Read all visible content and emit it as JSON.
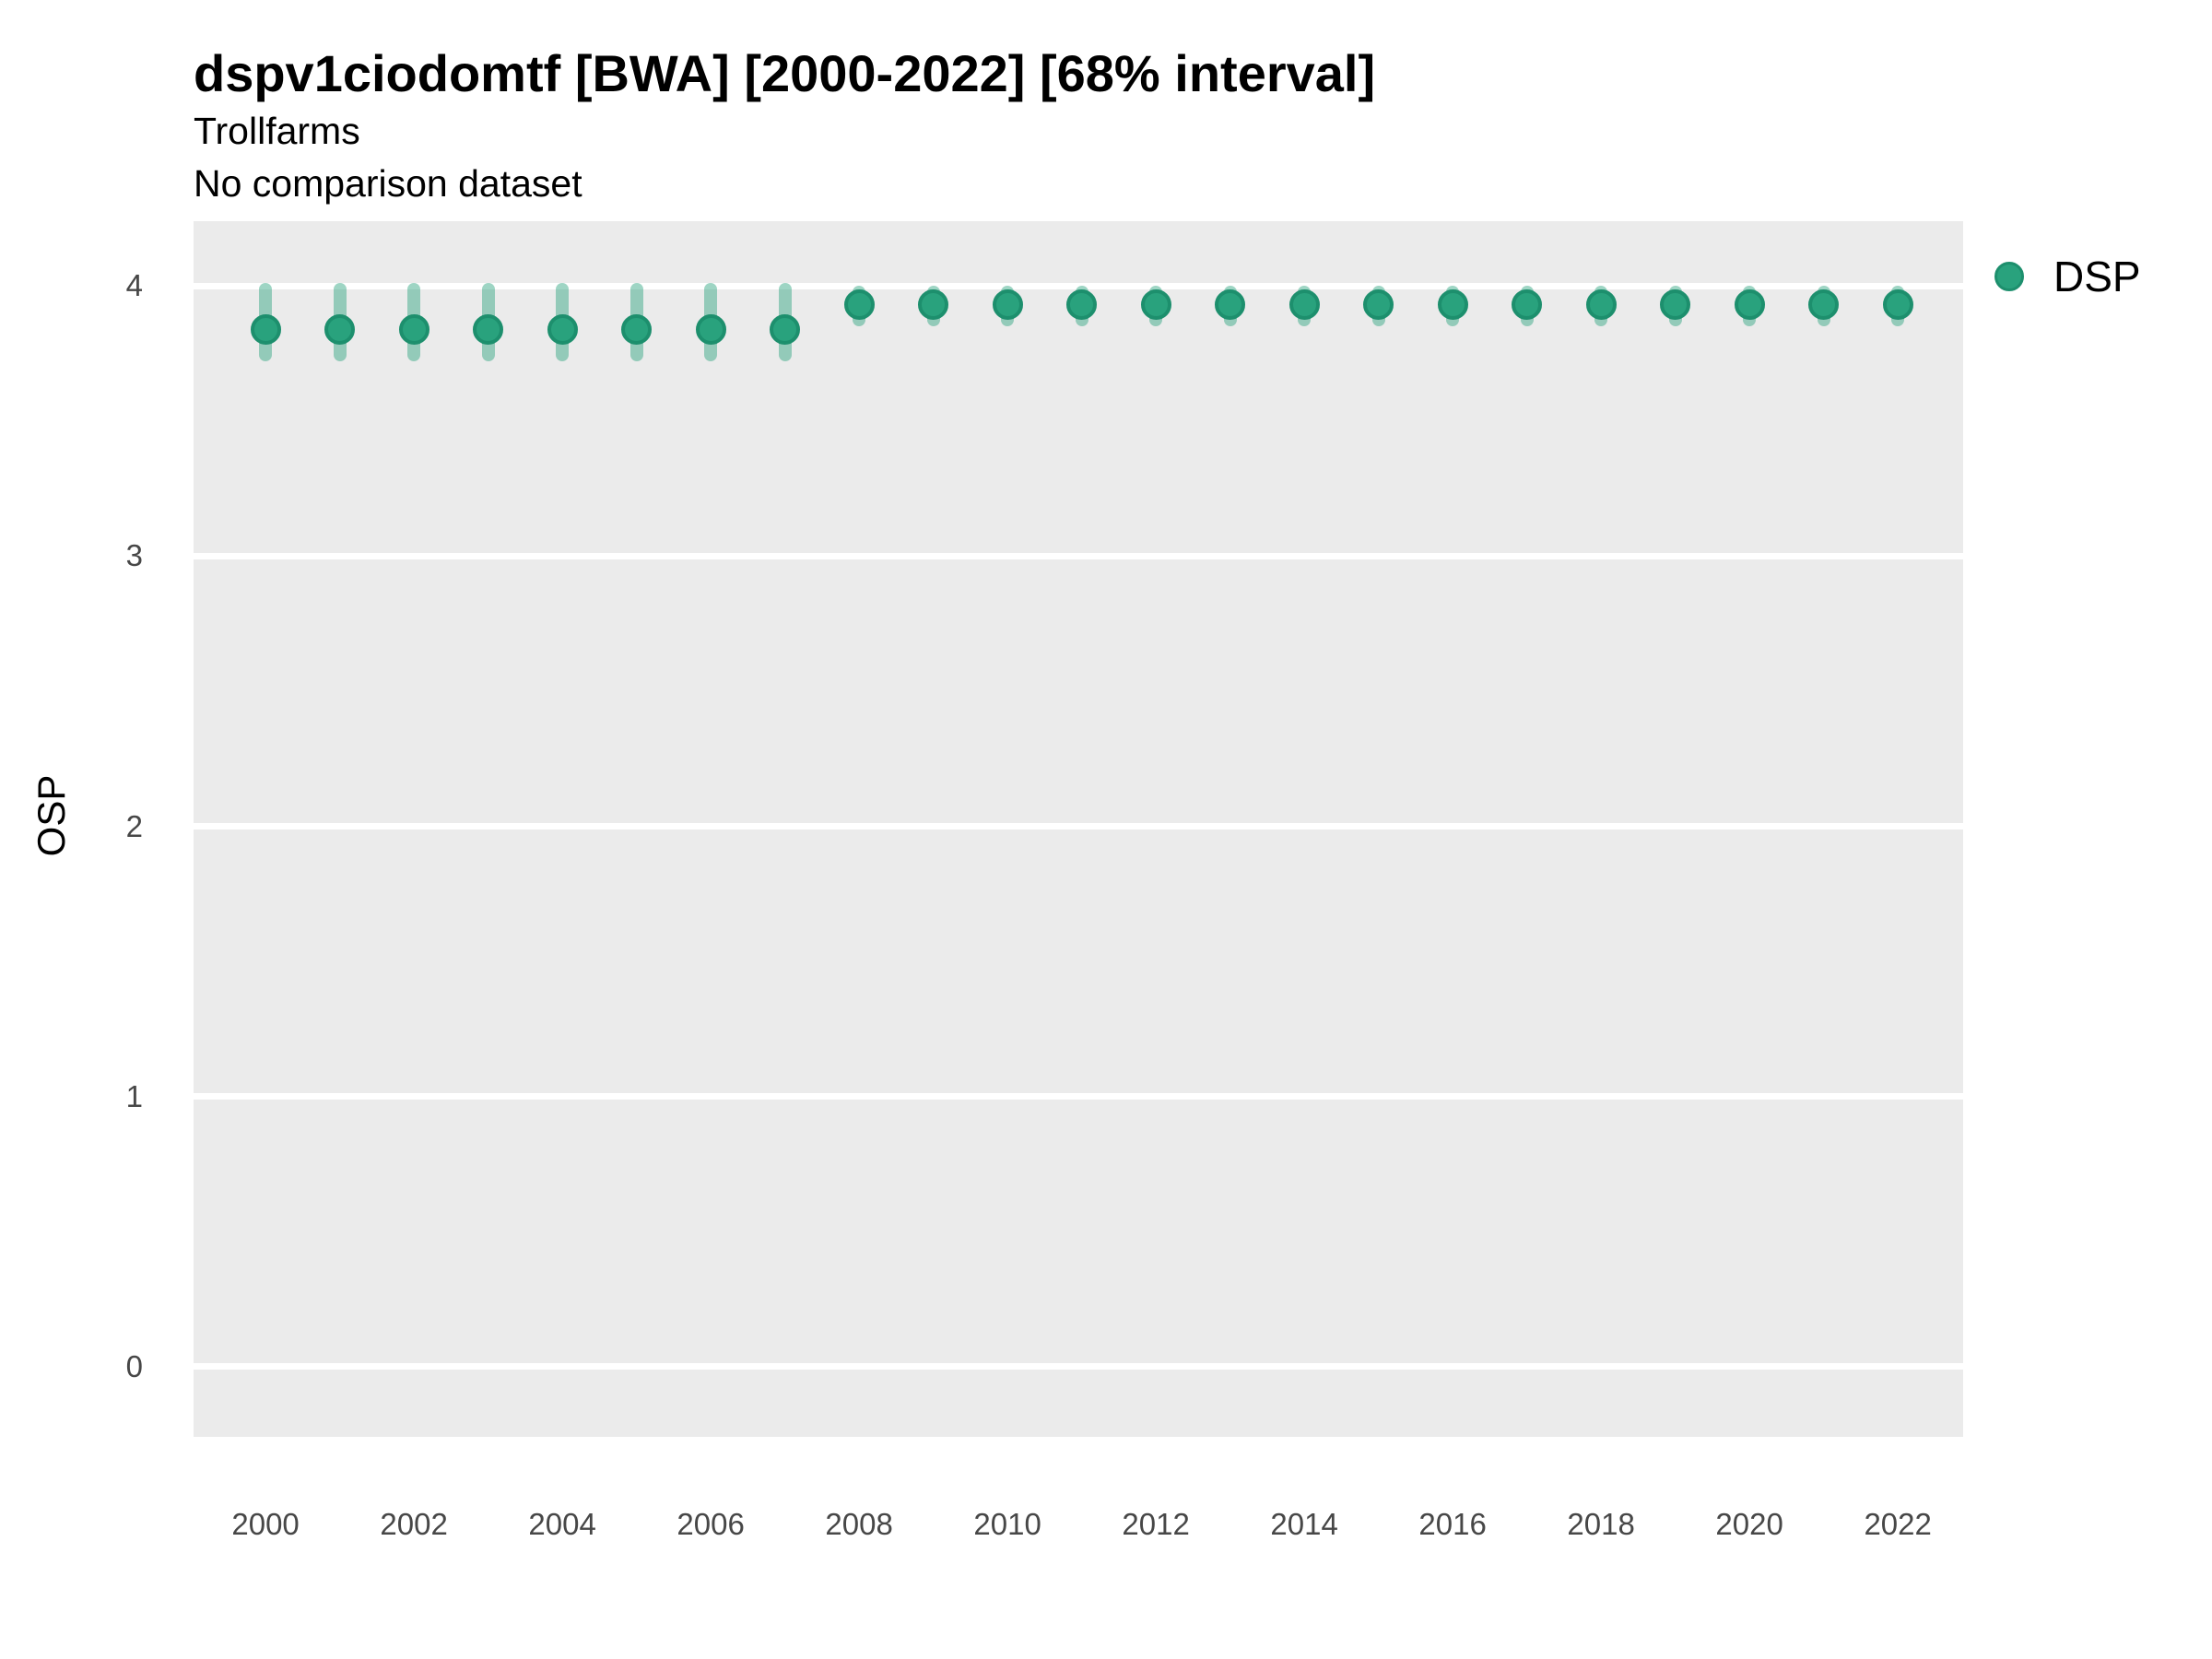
{
  "header": {
    "title": "dspv1ciodomtf [BWA] [2000-2022] [68% interval]",
    "subtitle": "Trollfarms",
    "note": "No comparison dataset"
  },
  "y_axis": {
    "title": "OSP"
  },
  "legend": {
    "entries": [
      {
        "label": "DSP",
        "marker": "circle-icon"
      }
    ]
  },
  "chart_data": {
    "type": "scatter",
    "title": "dspv1ciodomtf [BWA] [2000-2022] [68% interval]",
    "subtitle": "Trollfarms",
    "note": "No comparison dataset",
    "xlabel": "",
    "ylabel": "OSP",
    "interval": "68%",
    "legend_position": "right",
    "grid": "horizontal-major-only",
    "panel_bg": "#ebebeb",
    "gridline_color": "#ffffff",
    "x": [
      2000,
      2001,
      2002,
      2003,
      2004,
      2005,
      2006,
      2007,
      2008,
      2009,
      2010,
      2011,
      2012,
      2013,
      2014,
      2015,
      2016,
      2017,
      2018,
      2019,
      2020,
      2021,
      2022
    ],
    "series": [
      {
        "name": "DSP",
        "marker_fill": "#29a27d",
        "marker_stroke": "#1d8f6d",
        "interval_color": "#29a27d",
        "interval_alpha": 0.45,
        "values": [
          3.84,
          3.84,
          3.84,
          3.84,
          3.84,
          3.84,
          3.84,
          3.84,
          3.93,
          3.93,
          3.93,
          3.93,
          3.93,
          3.93,
          3.93,
          3.93,
          3.93,
          3.93,
          3.93,
          3.93,
          3.93,
          3.93,
          3.93
        ],
        "lower_68": [
          3.72,
          3.72,
          3.72,
          3.72,
          3.72,
          3.72,
          3.72,
          3.72,
          3.85,
          3.85,
          3.85,
          3.85,
          3.85,
          3.85,
          3.85,
          3.85,
          3.85,
          3.85,
          3.85,
          3.85,
          3.85,
          3.85,
          3.85
        ],
        "upper_68": [
          4.01,
          4.01,
          4.01,
          4.01,
          4.01,
          4.01,
          4.01,
          4.01,
          4.0,
          4.0,
          4.0,
          4.0,
          4.0,
          4.0,
          4.0,
          4.0,
          4.0,
          4.0,
          4.0,
          4.0,
          4.0,
          4.0,
          4.0
        ]
      }
    ],
    "x_ticks": [
      2000,
      2002,
      2004,
      2006,
      2008,
      2010,
      2012,
      2014,
      2016,
      2018,
      2020,
      2022
    ],
    "y_ticks": [
      0,
      1,
      2,
      3,
      4
    ],
    "xlim": [
      1999.03,
      2022.88
    ],
    "ylim": [
      -0.26,
      4.24
    ]
  }
}
